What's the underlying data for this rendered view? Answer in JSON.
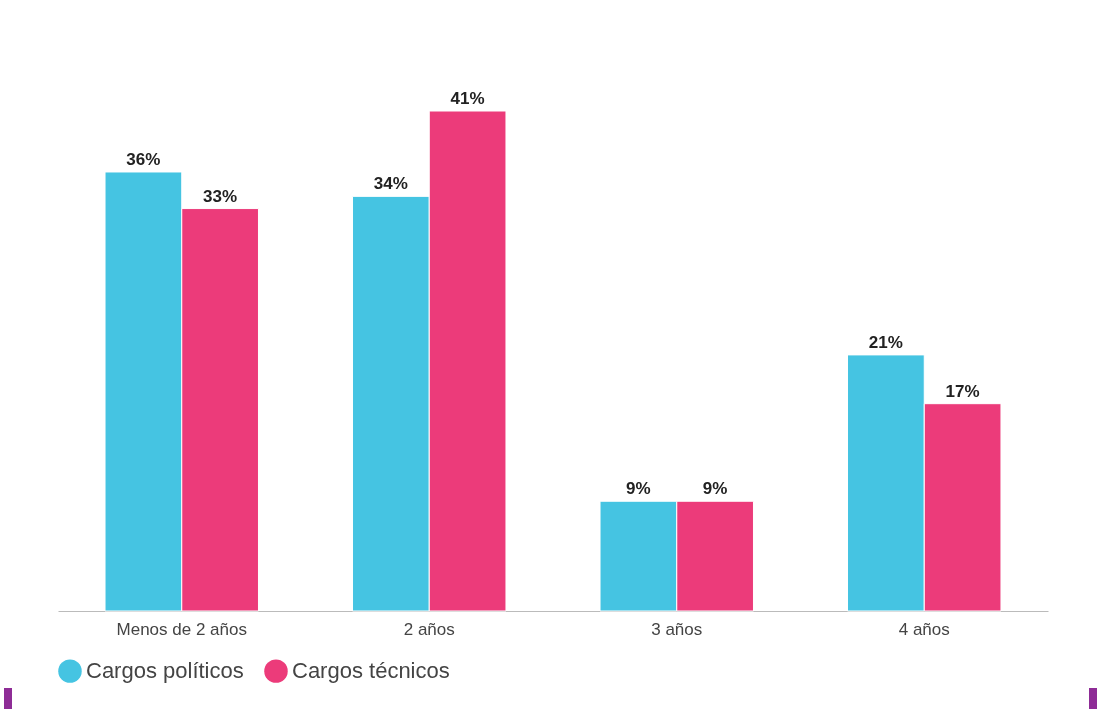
{
  "chart_data": {
    "type": "bar",
    "categories": [
      "Menos de 2 años",
      "2 años",
      "3 años",
      "4 años"
    ],
    "series": [
      {
        "name": "Cargos políticos",
        "color": "#45c4e2",
        "values": [
          36,
          34,
          9,
          21
        ],
        "value_labels": [
          "36%",
          "34%",
          "9%",
          "21%"
        ]
      },
      {
        "name": "Cargos técnicos",
        "color": "#ec3b7a",
        "values": [
          33,
          41,
          9,
          17
        ],
        "value_labels": [
          "33%",
          "41%",
          "9%",
          "17%"
        ]
      }
    ],
    "legend": "bottom"
  }
}
